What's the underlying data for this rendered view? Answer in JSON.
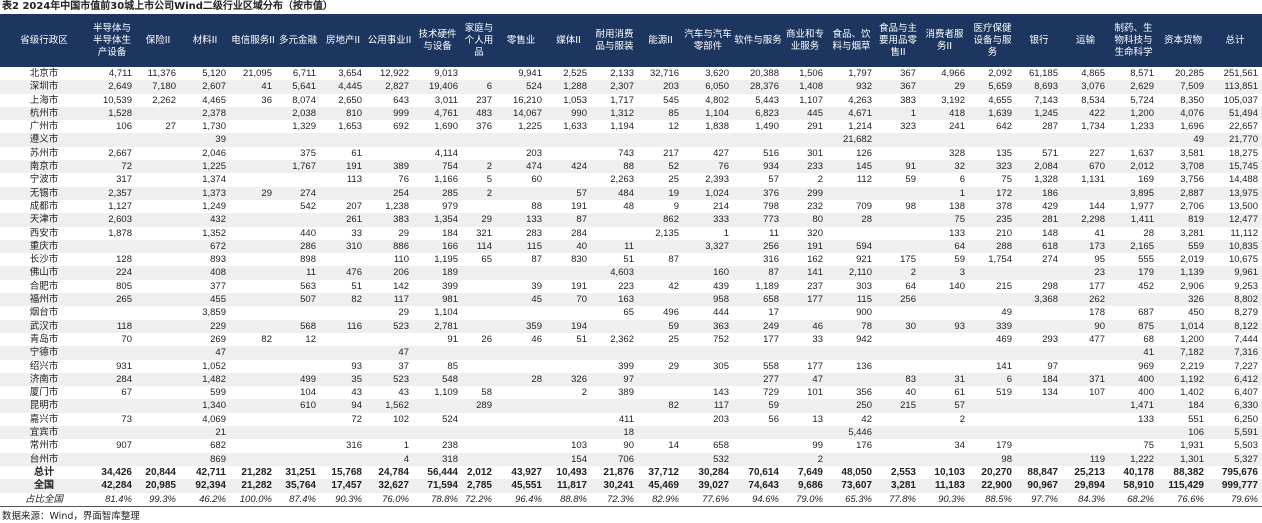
{
  "title": "表2 2024年中国市值前30城上市公司Wind二级行业区域分布（按市值）",
  "headers": [
    "省级行政区",
    "半导体与半导体生产设备",
    "保险II",
    "材料II",
    "电信服务II",
    "多元金融",
    "房地产II",
    "公用事业II",
    "技术硬件与设备",
    "家庭与个人用品",
    "零售业",
    "媒体II",
    "耐用消费品与服装",
    "能源II",
    "汽车与汽车零部件",
    "软件与服务",
    "商业和专业服务",
    "食品、饮料与烟草",
    "食品与主要用品零售II",
    "消费者服务II",
    "医疗保健设备与服务",
    "银行",
    "运输",
    "制药、生物科技与生命科学",
    "资本货物",
    "总计"
  ],
  "rows": [
    {
      "city": "北京市",
      "values": [
        "4,711",
        "11,376",
        "5,120",
        "21,095",
        "6,711",
        "3,654",
        "12,922",
        "9,013",
        "",
        "9,941",
        "2,525",
        "2,133",
        "32,716",
        "3,620",
        "20,388",
        "1,506",
        "1,797",
        "367",
        "4,966",
        "2,092",
        "61,185",
        "4,865",
        "8,571",
        "20,285",
        "251,561"
      ]
    },
    {
      "city": "深圳市",
      "values": [
        "2,649",
        "7,180",
        "2,607",
        "41",
        "5,641",
        "4,445",
        "2,827",
        "19,406",
        "6",
        "524",
        "1,288",
        "2,307",
        "203",
        "6,050",
        "28,376",
        "1,408",
        "932",
        "367",
        "29",
        "5,659",
        "8,693",
        "3,076",
        "2,629",
        "7,509",
        "113,851"
      ]
    },
    {
      "city": "上海市",
      "values": [
        "10,539",
        "2,262",
        "4,465",
        "36",
        "8,074",
        "2,650",
        "643",
        "3,011",
        "237",
        "16,210",
        "1,053",
        "1,717",
        "545",
        "4,802",
        "5,443",
        "1,107",
        "4,263",
        "383",
        "3,192",
        "4,655",
        "7,143",
        "8,534",
        "5,724",
        "8,350",
        "105,037"
      ]
    },
    {
      "city": "杭州市",
      "values": [
        "1,528",
        "",
        "2,378",
        "",
        "2,038",
        "810",
        "999",
        "4,761",
        "483",
        "14,067",
        "990",
        "1,312",
        "85",
        "1,104",
        "6,823",
        "445",
        "4,671",
        "1",
        "418",
        "1,639",
        "1,245",
        "422",
        "1,200",
        "4,076",
        "51,494"
      ]
    },
    {
      "city": "广州市",
      "values": [
        "106",
        "27",
        "1,730",
        "",
        "1,329",
        "1,653",
        "692",
        "1,690",
        "376",
        "1,225",
        "1,633",
        "1,194",
        "12",
        "1,838",
        "1,490",
        "291",
        "1,214",
        "323",
        "241",
        "642",
        "287",
        "1,734",
        "1,233",
        "1,696",
        "22,657"
      ]
    },
    {
      "city": "遵义市",
      "values": [
        "",
        "",
        "39",
        "",
        "",
        "",
        "",
        "",
        "",
        "",
        "",
        "",
        "",
        "",
        "",
        "",
        "21,682",
        "",
        "",
        "",
        "",
        "",
        "",
        "49",
        "21,770"
      ]
    },
    {
      "city": "苏州市",
      "values": [
        "2,667",
        "",
        "2,046",
        "",
        "375",
        "61",
        "",
        "4,114",
        "",
        "203",
        "",
        "743",
        "217",
        "427",
        "516",
        "301",
        "126",
        "",
        "328",
        "135",
        "571",
        "227",
        "1,637",
        "3,581",
        "18,275"
      ]
    },
    {
      "city": "南京市",
      "values": [
        "72",
        "",
        "1,225",
        "",
        "1,767",
        "191",
        "389",
        "754",
        "2",
        "474",
        "424",
        "88",
        "52",
        "76",
        "934",
        "233",
        "145",
        "91",
        "32",
        "323",
        "2,084",
        "670",
        "2,012",
        "3,708",
        "15,745"
      ]
    },
    {
      "city": "宁波市",
      "values": [
        "317",
        "",
        "1,374",
        "",
        "",
        "113",
        "76",
        "1,166",
        "5",
        "60",
        "",
        "2,263",
        "25",
        "2,393",
        "57",
        "2",
        "112",
        "59",
        "6",
        "75",
        "1,328",
        "1,131",
        "169",
        "3,756",
        "14,488"
      ]
    },
    {
      "city": "无锡市",
      "values": [
        "2,357",
        "",
        "1,373",
        "29",
        "274",
        "",
        "254",
        "285",
        "2",
        "",
        "57",
        "484",
        "19",
        "1,024",
        "376",
        "299",
        "",
        "",
        "1",
        "172",
        "186",
        "",
        "3,895",
        "2,887",
        "13,975"
      ]
    },
    {
      "city": "成都市",
      "values": [
        "1,127",
        "",
        "1,249",
        "",
        "542",
        "207",
        "1,238",
        "979",
        "",
        "88",
        "191",
        "48",
        "9",
        "214",
        "798",
        "232",
        "709",
        "98",
        "138",
        "378",
        "429",
        "144",
        "1,977",
        "2,706",
        "13,500"
      ]
    },
    {
      "city": "天津市",
      "values": [
        "2,603",
        "",
        "432",
        "",
        "",
        "261",
        "383",
        "1,354",
        "29",
        "133",
        "87",
        "",
        "862",
        "333",
        "773",
        "80",
        "28",
        "",
        "75",
        "235",
        "281",
        "2,298",
        "1,411",
        "819",
        "12,477"
      ]
    },
    {
      "city": "西安市",
      "values": [
        "1,878",
        "",
        "1,352",
        "",
        "440",
        "33",
        "29",
        "184",
        "321",
        "283",
        "284",
        "",
        "2,135",
        "1",
        "11",
        "320",
        "",
        "",
        "133",
        "210",
        "148",
        "41",
        "28",
        "3,281",
        "11,112"
      ]
    },
    {
      "city": "重庆市",
      "values": [
        "",
        "",
        "672",
        "",
        "286",
        "310",
        "886",
        "166",
        "114",
        "115",
        "40",
        "11",
        "",
        "3,327",
        "256",
        "191",
        "594",
        "",
        "64",
        "288",
        "618",
        "173",
        "2,165",
        "559",
        "10,835"
      ]
    },
    {
      "city": "长沙市",
      "values": [
        "128",
        "",
        "893",
        "",
        "898",
        "",
        "110",
        "1,195",
        "65",
        "87",
        "830",
        "51",
        "87",
        "",
        "316",
        "162",
        "921",
        "175",
        "59",
        "1,754",
        "274",
        "95",
        "555",
        "2,019",
        "10,675"
      ]
    },
    {
      "city": "佛山市",
      "values": [
        "224",
        "",
        "408",
        "",
        "11",
        "476",
        "206",
        "189",
        "",
        "",
        "",
        "4,603",
        "",
        "160",
        "87",
        "141",
        "2,110",
        "2",
        "3",
        "",
        "",
        "23",
        "179",
        "1,139",
        "9,961"
      ]
    },
    {
      "city": "合肥市",
      "values": [
        "805",
        "",
        "377",
        "",
        "563",
        "51",
        "142",
        "399",
        "",
        "39",
        "191",
        "223",
        "42",
        "439",
        "1,189",
        "237",
        "303",
        "64",
        "140",
        "215",
        "298",
        "177",
        "452",
        "2,906",
        "9,253"
      ]
    },
    {
      "city": "福州市",
      "values": [
        "265",
        "",
        "455",
        "",
        "507",
        "82",
        "117",
        "981",
        "",
        "45",
        "70",
        "163",
        "",
        "958",
        "658",
        "177",
        "115",
        "256",
        "",
        "",
        "3,368",
        "262",
        "",
        "326",
        "8,802"
      ]
    },
    {
      "city": "烟台市",
      "values": [
        "",
        "",
        "3,859",
        "",
        "",
        "",
        "29",
        "1,104",
        "",
        "",
        "",
        "65",
        "496",
        "444",
        "17",
        "",
        "900",
        "",
        "",
        "49",
        "",
        "178",
        "687",
        "450",
        "8,279"
      ]
    },
    {
      "city": "武汉市",
      "values": [
        "118",
        "",
        "229",
        "",
        "568",
        "116",
        "523",
        "2,781",
        "",
        "359",
        "194",
        "",
        "59",
        "363",
        "249",
        "46",
        "78",
        "30",
        "93",
        "339",
        "",
        "90",
        "875",
        "1,014",
        "8,122"
      ]
    },
    {
      "city": "青岛市",
      "values": [
        "70",
        "",
        "269",
        "82",
        "12",
        "",
        "",
        "91",
        "26",
        "46",
        "51",
        "2,362",
        "25",
        "752",
        "177",
        "33",
        "942",
        "",
        "",
        "469",
        "293",
        "477",
        "68",
        "1,200",
        "7,444"
      ]
    },
    {
      "city": "宁德市",
      "values": [
        "",
        "",
        "47",
        "",
        "",
        "",
        "47",
        "",
        "",
        "",
        "",
        "",
        "",
        "",
        "",
        "",
        "",
        "",
        "",
        "",
        "",
        "",
        "41",
        "7,182",
        "7,316"
      ]
    },
    {
      "city": "绍兴市",
      "values": [
        "931",
        "",
        "1,052",
        "",
        "",
        "93",
        "37",
        "85",
        "",
        "",
        "",
        "399",
        "29",
        "305",
        "558",
        "177",
        "136",
        "",
        "",
        "141",
        "97",
        "",
        "969",
        "2,219",
        "7,227"
      ]
    },
    {
      "city": "济南市",
      "values": [
        "284",
        "",
        "1,482",
        "",
        "499",
        "35",
        "523",
        "548",
        "",
        "28",
        "326",
        "97",
        "",
        "",
        "277",
        "47",
        "",
        "83",
        "31",
        "6",
        "184",
        "371",
        "400",
        "1,192",
        "6,412"
      ]
    },
    {
      "city": "厦门市",
      "values": [
        "67",
        "",
        "599",
        "",
        "104",
        "43",
        "43",
        "1,109",
        "58",
        "",
        "2",
        "389",
        "",
        "143",
        "729",
        "101",
        "356",
        "40",
        "61",
        "519",
        "134",
        "107",
        "400",
        "1,402",
        "6,407"
      ]
    },
    {
      "city": "昆明市",
      "values": [
        "",
        "",
        "1,340",
        "",
        "610",
        "94",
        "1,562",
        "",
        "289",
        "",
        "",
        "",
        "82",
        "117",
        "59",
        "",
        "250",
        "215",
        "57",
        "",
        "",
        "",
        "1,471",
        "184",
        "6,330"
      ]
    },
    {
      "city": "嘉兴市",
      "values": [
        "73",
        "",
        "4,069",
        "",
        "",
        "72",
        "102",
        "524",
        "",
        "",
        "",
        "411",
        "",
        "203",
        "56",
        "13",
        "42",
        "",
        "2",
        "",
        "",
        "",
        "133",
        "551",
        "6,250"
      ]
    },
    {
      "city": "宜宾市",
      "values": [
        "",
        "",
        "21",
        "",
        "",
        "",
        "",
        "",
        "",
        "",
        "",
        "18",
        "",
        "",
        "",
        "",
        "5,446",
        "",
        "",
        "",
        "",
        "",
        "",
        "106",
        "5,591"
      ]
    },
    {
      "city": "常州市",
      "values": [
        "907",
        "",
        "682",
        "",
        "",
        "316",
        "1",
        "238",
        "",
        "",
        "103",
        "90",
        "14",
        "658",
        "",
        "99",
        "176",
        "",
        "34",
        "179",
        "",
        "",
        "75",
        "1,931",
        "5,503"
      ]
    },
    {
      "city": "台州市",
      "values": [
        "",
        "",
        "869",
        "",
        "",
        "",
        "4",
        "318",
        "",
        "",
        "154",
        "706",
        "",
        "532",
        "",
        "2",
        "",
        "",
        "",
        "98",
        "",
        "119",
        "1,222",
        "1,301",
        "5,327"
      ]
    }
  ],
  "totals": [
    {
      "city": "总计",
      "values": [
        "34,426",
        "20,844",
        "42,711",
        "21,282",
        "31,251",
        "15,768",
        "24,784",
        "56,444",
        "2,012",
        "43,927",
        "10,493",
        "21,876",
        "37,712",
        "30,284",
        "70,614",
        "7,649",
        "48,050",
        "2,553",
        "10,103",
        "20,270",
        "88,847",
        "25,213",
        "40,178",
        "88,382",
        "795,676"
      ]
    },
    {
      "city": "全国",
      "values": [
        "42,284",
        "20,985",
        "92,394",
        "21,282",
        "35,764",
        "17,457",
        "32,627",
        "71,594",
        "2,785",
        "45,551",
        "11,817",
        "30,241",
        "45,469",
        "39,027",
        "74,643",
        "9,686",
        "73,607",
        "3,281",
        "11,183",
        "22,900",
        "90,967",
        "29,894",
        "58,910",
        "115,429",
        "999,777"
      ]
    }
  ],
  "share": {
    "city": "占比全国",
    "values": [
      "81.4%",
      "99.3%",
      "46.2%",
      "100.0%",
      "87.4%",
      "90.3%",
      "76.0%",
      "78.8%",
      "72.2%",
      "96.4%",
      "88.8%",
      "72.3%",
      "82.9%",
      "77.6%",
      "94.6%",
      "79.0%",
      "65.3%",
      "77.8%",
      "90.3%",
      "88.5%",
      "97.7%",
      "84.3%",
      "68.2%",
      "76.6%",
      "79.6%"
    ]
  },
  "source": "数据来源：Wind，界面智库整理",
  "colors": {
    "header_bg": "#1d3660",
    "stripe": "#efefef"
  }
}
